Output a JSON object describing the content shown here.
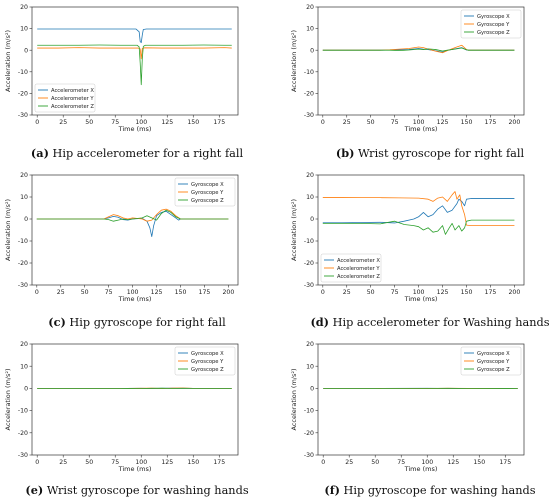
{
  "colors": {
    "blue": "#1f77b4",
    "orange": "#ff7f0e",
    "green": "#2ca02c"
  },
  "chart_data": [
    {
      "id": "a",
      "type": "line",
      "caption_tag": "(a)",
      "caption_text": "Hip accelerometer for a right fall",
      "xlabel": "Time (ms)",
      "ylabel": "Acceleration (m/s²)",
      "xlim": [
        -5,
        193
      ],
      "ylim": [
        -30,
        20
      ],
      "xticks": [
        0,
        25,
        50,
        75,
        100,
        125,
        150,
        175
      ],
      "yticks": [
        20,
        10,
        0,
        -10,
        -20,
        -30
      ],
      "legend_loc": "lower-left",
      "series": [
        {
          "name": "Accelerometer X",
          "color": "#1f77b4",
          "x": [
            0,
            20,
            40,
            60,
            80,
            95,
            98,
            99,
            100,
            101,
            102,
            105,
            120,
            140,
            160,
            180,
            187
          ],
          "y": [
            9.8,
            9.8,
            9.8,
            9.8,
            9.8,
            9.8,
            8.5,
            4,
            3.5,
            7,
            9.6,
            9.8,
            9.8,
            9.8,
            9.8,
            9.8,
            9.8
          ]
        },
        {
          "name": "Accelerometer Y",
          "color": "#ff7f0e",
          "x": [
            0,
            20,
            40,
            60,
            80,
            97,
            99,
            100,
            101,
            103,
            120,
            140,
            160,
            180,
            187
          ],
          "y": [
            1,
            1,
            1.2,
            1,
            1,
            1,
            0.6,
            -4,
            0.8,
            1.1,
            1,
            1,
            1,
            1.2,
            1
          ]
        },
        {
          "name": "Accelerometer Z",
          "color": "#2ca02c",
          "x": [
            0,
            20,
            40,
            60,
            80,
            96,
            98,
            99,
            100,
            101,
            102,
            104,
            120,
            140,
            160,
            180,
            187
          ],
          "y": [
            2.3,
            2.3,
            2.3,
            2.4,
            2.3,
            2.3,
            1.5,
            -6,
            -16,
            -4,
            1.8,
            2.3,
            2.3,
            2.3,
            2.4,
            2.3,
            2.3
          ]
        }
      ]
    },
    {
      "id": "b",
      "type": "line",
      "caption_tag": "(b)",
      "caption_text": "Wrist gyroscope for right fall",
      "xlabel": "Time (ms)",
      "ylabel": "Acceleration (m/s²)",
      "xlim": [
        -5,
        210
      ],
      "ylim": [
        -30,
        20
      ],
      "xticks": [
        0,
        25,
        50,
        75,
        100,
        125,
        150,
        175,
        200
      ],
      "yticks": [
        20,
        10,
        0,
        -10,
        -20,
        -30
      ],
      "legend_loc": "upper-right",
      "series": [
        {
          "name": "Gyroscope X",
          "color": "#1f77b4",
          "x": [
            0,
            60,
            70,
            80,
            90,
            100,
            105,
            110,
            118,
            125,
            130,
            138,
            145,
            150,
            152,
            200
          ],
          "y": [
            0,
            0,
            0.1,
            0.2,
            0.3,
            0.8,
            0.5,
            0.3,
            -0.3,
            -0.9,
            -0.1,
            0.6,
            1.2,
            0.1,
            0,
            0
          ]
        },
        {
          "name": "Gyroscope Y",
          "color": "#ff7f0e",
          "x": [
            0,
            60,
            70,
            80,
            90,
            100,
            105,
            110,
            118,
            125,
            130,
            138,
            145,
            150,
            152,
            200
          ],
          "y": [
            0,
            0,
            0.2,
            0.5,
            0.8,
            1.5,
            1.2,
            0.5,
            -0.5,
            -1.2,
            -0.2,
            1.2,
            2.3,
            0.3,
            0,
            0
          ]
        },
        {
          "name": "Gyroscope Z",
          "color": "#2ca02c",
          "x": [
            0,
            60,
            70,
            80,
            90,
            100,
            105,
            110,
            118,
            125,
            130,
            138,
            145,
            150,
            152,
            200
          ],
          "y": [
            0,
            0,
            0,
            -0.2,
            0.1,
            0.5,
            0.3,
            0.6,
            0.3,
            -0.4,
            0,
            0.5,
            1,
            0.2,
            0,
            0
          ]
        }
      ]
    },
    {
      "id": "c",
      "type": "line",
      "caption_tag": "(c)",
      "caption_text": "Hip gyroscope for right fall",
      "xlabel": "Time (ms)",
      "ylabel": "Acceleration (m/s²)",
      "xlim": [
        -5,
        210
      ],
      "ylim": [
        -30,
        20
      ],
      "xticks": [
        0,
        25,
        50,
        75,
        100,
        125,
        150,
        175,
        200
      ],
      "yticks": [
        20,
        10,
        0,
        -10,
        -20,
        -30
      ],
      "legend_loc": "upper-right",
      "series": [
        {
          "name": "Gyroscope X",
          "color": "#1f77b4",
          "x": [
            0,
            70,
            75,
            80,
            85,
            90,
            95,
            100,
            110,
            115,
            118,
            120,
            122,
            125,
            130,
            135,
            140,
            145,
            148,
            150,
            200
          ],
          "y": [
            0,
            0,
            0.5,
            1.2,
            0.8,
            -0.3,
            -0.5,
            0,
            0.3,
            -1,
            -4,
            -8,
            -3,
            1.5,
            3,
            3.5,
            2,
            0.5,
            -0.5,
            0,
            0
          ]
        },
        {
          "name": "Gyroscope Y",
          "color": "#ff7f0e",
          "x": [
            0,
            70,
            75,
            80,
            85,
            90,
            95,
            100,
            110,
            115,
            120,
            125,
            130,
            135,
            140,
            145,
            150,
            200
          ],
          "y": [
            0,
            0,
            1,
            2,
            1.5,
            0.5,
            0,
            0.5,
            0,
            -1,
            -0.5,
            2,
            4,
            4.5,
            3.5,
            1.5,
            0,
            0
          ]
        },
        {
          "name": "Gyroscope Z",
          "color": "#2ca02c",
          "x": [
            0,
            70,
            75,
            80,
            85,
            90,
            95,
            100,
            110,
            115,
            120,
            125,
            130,
            135,
            140,
            145,
            150,
            200
          ],
          "y": [
            0,
            0,
            -0.3,
            -1,
            -0.5,
            0,
            -0.3,
            0,
            0.5,
            1.5,
            0.5,
            -0.5,
            2.5,
            4,
            3,
            1,
            0,
            0
          ]
        }
      ]
    },
    {
      "id": "d",
      "type": "line",
      "caption_tag": "(d)",
      "caption_text": "Hip accelerometer for Washing hands",
      "xlabel": "Time (ms)",
      "ylabel": "Acceleration (m/s²)",
      "xlim": [
        -5,
        210
      ],
      "ylim": [
        -30,
        20
      ],
      "xticks": [
        0,
        25,
        50,
        75,
        100,
        125,
        150,
        175,
        200
      ],
      "yticks": [
        20,
        10,
        0,
        -10,
        -20,
        -30
      ],
      "legend_loc": "lower-left",
      "series": [
        {
          "name": "Accelerometer X",
          "color": "#1f77b4",
          "x": [
            0,
            20,
            40,
            60,
            75,
            85,
            95,
            100,
            105,
            110,
            115,
            120,
            125,
            130,
            135,
            140,
            142,
            145,
            148,
            150,
            155,
            170,
            185,
            200
          ],
          "y": [
            -1.7,
            -1.7,
            -1.6,
            -1.5,
            -1.8,
            -1,
            0,
            1,
            3,
            1,
            2,
            4.5,
            6,
            3,
            4,
            7,
            9,
            8,
            6,
            9,
            9.3,
            9.3,
            9.3,
            9.3
          ]
        },
        {
          "name": "Accelerometer Y",
          "color": "#ff7f0e",
          "x": [
            0,
            20,
            40,
            60,
            80,
            100,
            110,
            115,
            120,
            125,
            130,
            135,
            138,
            140,
            143,
            145,
            148,
            150,
            155,
            170,
            185,
            200
          ],
          "y": [
            9.8,
            9.8,
            9.7,
            9.7,
            9.6,
            9.5,
            9,
            8,
            9.5,
            10,
            8,
            11,
            12.5,
            9,
            11,
            6,
            2,
            -2.8,
            -3,
            -3,
            -3,
            -3
          ]
        },
        {
          "name": "Accelerometer Z",
          "color": "#2ca02c",
          "x": [
            0,
            20,
            40,
            60,
            75,
            85,
            95,
            100,
            105,
            110,
            115,
            120,
            125,
            128,
            132,
            135,
            138,
            142,
            145,
            148,
            150,
            155,
            170,
            185,
            200
          ],
          "y": [
            -2,
            -2,
            -2,
            -2.2,
            -1,
            -2.5,
            -3,
            -3.5,
            -5,
            -4,
            -6,
            -5.5,
            -3,
            -7,
            -4,
            -2,
            -5,
            -3,
            -5.5,
            -4,
            -1,
            -0.5,
            -0.5,
            -0.5,
            -0.5
          ]
        }
      ]
    },
    {
      "id": "e",
      "type": "line",
      "caption_tag": "(e)",
      "caption_text": "Wrist gyroscope for washing hands",
      "xlabel": "Time (ms)",
      "ylabel": "Acceleration (m/s²)",
      "xlim": [
        -5,
        193
      ],
      "ylim": [
        -30,
        20
      ],
      "xticks": [
        0,
        25,
        50,
        75,
        100,
        125,
        150,
        175
      ],
      "yticks": [
        20,
        10,
        0,
        -10,
        -20,
        -30
      ],
      "legend_loc": "upper-right",
      "series": [
        {
          "name": "Gyroscope X",
          "color": "#1f77b4",
          "x": [
            0,
            40,
            80,
            100,
            110,
            120,
            130,
            140,
            150,
            187
          ],
          "y": [
            0,
            0,
            0,
            0.05,
            -0.05,
            0.05,
            0.1,
            0.05,
            0,
            0
          ]
        },
        {
          "name": "Gyroscope Y",
          "color": "#ff7f0e",
          "x": [
            0,
            40,
            80,
            100,
            110,
            120,
            130,
            140,
            150,
            187
          ],
          "y": [
            0,
            0,
            0,
            0.05,
            0.1,
            -0.05,
            0.1,
            0.15,
            0,
            0
          ]
        },
        {
          "name": "Gyroscope Z",
          "color": "#2ca02c",
          "x": [
            0,
            40,
            80,
            100,
            110,
            120,
            130,
            140,
            150,
            187
          ],
          "y": [
            0,
            0,
            0,
            -0.05,
            0.05,
            0.1,
            -0.05,
            0.05,
            0,
            0
          ]
        }
      ]
    },
    {
      "id": "f",
      "type": "line",
      "caption_tag": "(f)",
      "caption_text": "Hip gyroscope for washing hands",
      "xlabel": "Time (ms)",
      "ylabel": "Acceleration (m/s²)",
      "xlim": [
        -5,
        193
      ],
      "ylim": [
        -30,
        20
      ],
      "xticks": [
        0,
        25,
        50,
        75,
        100,
        125,
        150,
        175
      ],
      "yticks": [
        20,
        10,
        0,
        -10,
        -20,
        -30
      ],
      "legend_loc": "upper-right",
      "series": [
        {
          "name": "Gyroscope X",
          "color": "#1f77b4",
          "x": [
            0,
            50,
            100,
            120,
            140,
            187
          ],
          "y": [
            0,
            0,
            0.05,
            -0.05,
            0,
            0
          ]
        },
        {
          "name": "Gyroscope Y",
          "color": "#ff7f0e",
          "x": [
            0,
            50,
            100,
            120,
            140,
            187
          ],
          "y": [
            0,
            0,
            -0.05,
            0.05,
            0,
            0
          ]
        },
        {
          "name": "Gyroscope Z",
          "color": "#2ca02c",
          "x": [
            0,
            50,
            100,
            120,
            140,
            187
          ],
          "y": [
            0,
            0,
            0,
            0.05,
            -0.05,
            0
          ]
        }
      ]
    }
  ]
}
